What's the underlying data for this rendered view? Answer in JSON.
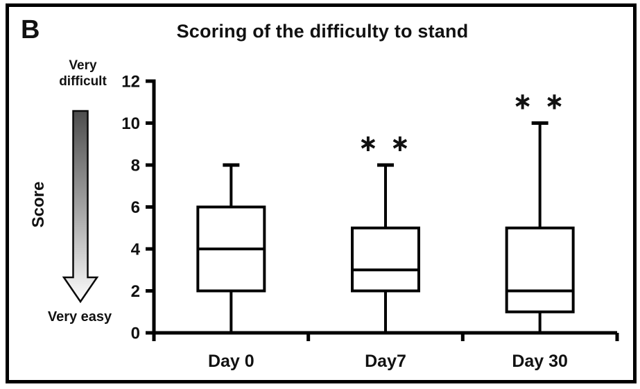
{
  "figure": {
    "panel_label": "B",
    "scale_top_label": "Very difficult",
    "scale_bottom_label": "Very easy",
    "arrow_icon": "gradient-down-arrow",
    "colors": {
      "frame": "#000000",
      "stroke": "#000000",
      "box_fill": "#ffffff",
      "text": "#111111",
      "arrow_top": "#4d4d4d",
      "arrow_mid": "#aaaaaa",
      "arrow_bottom": "#fdfdfd"
    }
  },
  "chart_data": {
    "type": "box",
    "title": "Scoring of the difficulty to stand",
    "xlabel": "",
    "ylabel": "Score",
    "ylim": [
      0,
      12
    ],
    "yticks": [
      0,
      2,
      4,
      6,
      8,
      10,
      12
    ],
    "grid": false,
    "legend": false,
    "categories": [
      "Day 0",
      "Day7",
      "Day 30"
    ],
    "series": [
      {
        "category": "Day 0",
        "whisker_low": 0,
        "q1": 2,
        "median": 4,
        "q3": 6,
        "whisker_high": 8,
        "significance": ""
      },
      {
        "category": "Day7",
        "whisker_low": 0,
        "q1": 2,
        "median": 3,
        "q3": 5,
        "whisker_high": 8,
        "significance": "**"
      },
      {
        "category": "Day 30",
        "whisker_low": 0,
        "q1": 1,
        "median": 2,
        "q3": 5,
        "whisker_high": 10,
        "significance": "**"
      }
    ]
  }
}
